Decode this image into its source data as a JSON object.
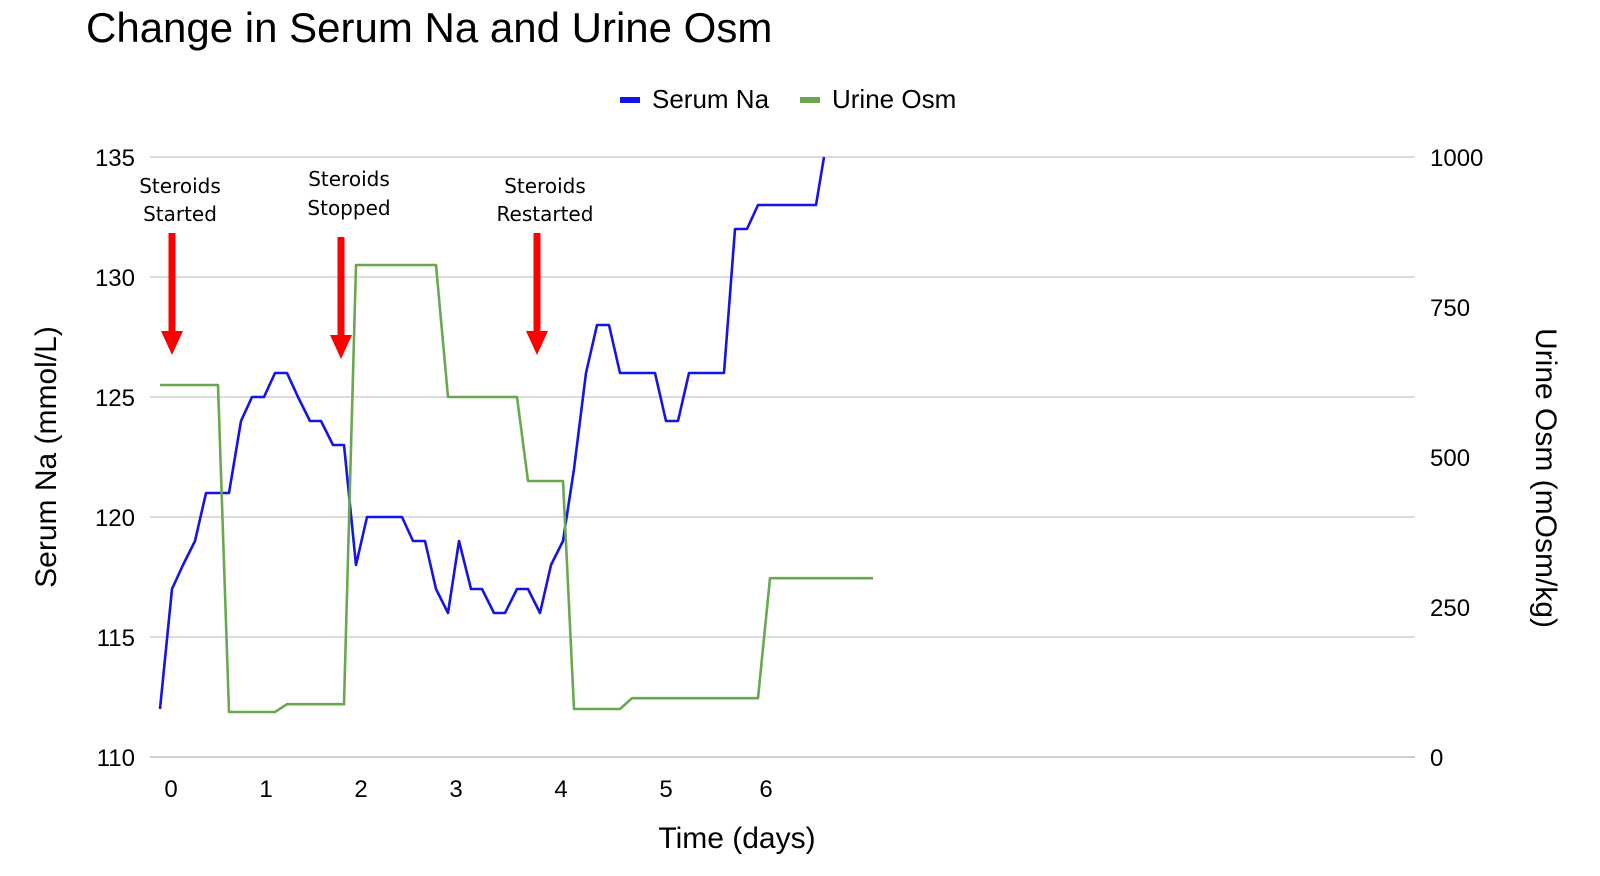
{
  "chart_data": {
    "type": "line",
    "title": "Change in Serum Na and Urine Osm",
    "xlabel": "Time (days)",
    "ylabel_left": "Serum Na (mmol/L)",
    "ylabel_right": "Urine Osm (mOsm/kg)",
    "ylim_left": [
      110,
      135
    ],
    "ylim_right": [
      0,
      1000
    ],
    "left_ticks": [
      "110",
      "115",
      "120",
      "125",
      "130",
      "135"
    ],
    "right_ticks": [
      "0",
      "250",
      "500",
      "750",
      "1000"
    ],
    "x_ticks": [
      {
        "label": "0",
        "x": 0.05
      },
      {
        "label": "1",
        "x": 1.0
      },
      {
        "label": "2",
        "x": 1.95
      },
      {
        "label": "3",
        "x": 2.9
      },
      {
        "label": "4",
        "x": 3.95
      },
      {
        "label": "5",
        "x": 5.0
      },
      {
        "label": "6",
        "x": 6.0
      }
    ],
    "grid": true,
    "legend_position": "top-center",
    "series": [
      {
        "name": "Serum Na",
        "axis": "left",
        "color": "#1414e6",
        "points": [
          [
            0.0,
            112
          ],
          [
            0.12,
            117
          ],
          [
            0.23,
            118
          ],
          [
            0.35,
            119
          ],
          [
            0.46,
            121
          ],
          [
            0.58,
            121
          ],
          [
            0.69,
            121
          ],
          [
            0.81,
            124
          ],
          [
            0.92,
            125
          ],
          [
            1.04,
            125
          ],
          [
            1.15,
            126
          ],
          [
            1.27,
            126
          ],
          [
            1.38,
            125
          ],
          [
            1.5,
            124
          ],
          [
            1.61,
            124
          ],
          [
            1.73,
            123
          ],
          [
            1.84,
            123
          ],
          [
            1.96,
            118
          ],
          [
            2.07,
            120
          ],
          [
            2.19,
            120
          ],
          [
            2.3,
            120
          ],
          [
            2.42,
            120
          ],
          [
            2.53,
            119
          ],
          [
            2.65,
            119
          ],
          [
            2.76,
            117
          ],
          [
            2.88,
            116
          ],
          [
            2.99,
            119
          ],
          [
            3.11,
            117
          ],
          [
            3.22,
            117
          ],
          [
            3.34,
            116
          ],
          [
            3.45,
            116
          ],
          [
            3.57,
            117
          ],
          [
            3.68,
            117
          ],
          [
            3.8,
            116
          ],
          [
            3.91,
            118
          ],
          [
            4.03,
            119
          ],
          [
            4.14,
            122
          ],
          [
            4.26,
            126
          ],
          [
            4.37,
            128
          ],
          [
            4.49,
            128
          ],
          [
            4.6,
            126
          ],
          [
            4.72,
            126
          ],
          [
            4.83,
            126
          ],
          [
            4.95,
            126
          ],
          [
            5.06,
            124
          ],
          [
            5.18,
            124
          ],
          [
            5.29,
            126
          ],
          [
            5.41,
            126
          ],
          [
            5.52,
            126
          ],
          [
            5.64,
            126
          ],
          [
            5.75,
            132
          ],
          [
            5.87,
            132
          ],
          [
            5.98,
            133
          ],
          [
            6.1,
            133
          ],
          [
            6.21,
            133
          ],
          [
            6.33,
            133
          ],
          [
            6.44,
            133
          ],
          [
            6.56,
            133
          ],
          [
            6.64,
            135
          ]
        ]
      },
      {
        "name": "Urine Osm",
        "axis": "right",
        "color": "#6aa84f",
        "points": [
          [
            0.0,
            620
          ],
          [
            0.58,
            620
          ],
          [
            0.69,
            75
          ],
          [
            0.81,
            75
          ],
          [
            0.92,
            75
          ],
          [
            1.04,
            75
          ],
          [
            1.15,
            75
          ],
          [
            1.27,
            88
          ],
          [
            1.38,
            88
          ],
          [
            1.5,
            88
          ],
          [
            1.61,
            88
          ],
          [
            1.73,
            88
          ],
          [
            1.84,
            88
          ],
          [
            1.96,
            820
          ],
          [
            2.07,
            820
          ],
          [
            2.19,
            820
          ],
          [
            2.3,
            820
          ],
          [
            2.42,
            820
          ],
          [
            2.53,
            820
          ],
          [
            2.65,
            820
          ],
          [
            2.76,
            820
          ],
          [
            2.88,
            600
          ],
          [
            2.99,
            600
          ],
          [
            3.11,
            600
          ],
          [
            3.22,
            600
          ],
          [
            3.34,
            600
          ],
          [
            3.45,
            600
          ],
          [
            3.57,
            600
          ],
          [
            3.68,
            460
          ],
          [
            3.8,
            460
          ],
          [
            3.91,
            460
          ],
          [
            4.03,
            460
          ],
          [
            4.14,
            80
          ],
          [
            4.26,
            80
          ],
          [
            4.37,
            80
          ],
          [
            4.49,
            80
          ],
          [
            4.6,
            80
          ],
          [
            4.72,
            98
          ],
          [
            4.83,
            98
          ],
          [
            4.95,
            98
          ],
          [
            5.06,
            98
          ],
          [
            5.18,
            98
          ],
          [
            5.29,
            98
          ],
          [
            5.41,
            98
          ],
          [
            5.52,
            98
          ],
          [
            5.64,
            98
          ],
          [
            5.75,
            98
          ],
          [
            5.87,
            98
          ],
          [
            5.98,
            98
          ],
          [
            6.1,
            298
          ],
          [
            6.21,
            298
          ],
          [
            6.33,
            298
          ],
          [
            6.44,
            298
          ],
          [
            6.56,
            298
          ],
          [
            6.67,
            298
          ],
          [
            6.79,
            298
          ],
          [
            6.9,
            298
          ],
          [
            7.02,
            298
          ],
          [
            7.13,
            298
          ]
        ]
      }
    ],
    "annotations": [
      {
        "lines": [
          "Steroids",
          "Started"
        ],
        "x": 0.12,
        "color": "#ff0000"
      },
      {
        "lines": [
          "Steroids",
          "Stopped"
        ],
        "x": 1.81,
        "color": "#ff0000"
      },
      {
        "lines": [
          "Steroids",
          "Restarted"
        ],
        "x": 3.77,
        "color": "#ff0000"
      }
    ]
  }
}
